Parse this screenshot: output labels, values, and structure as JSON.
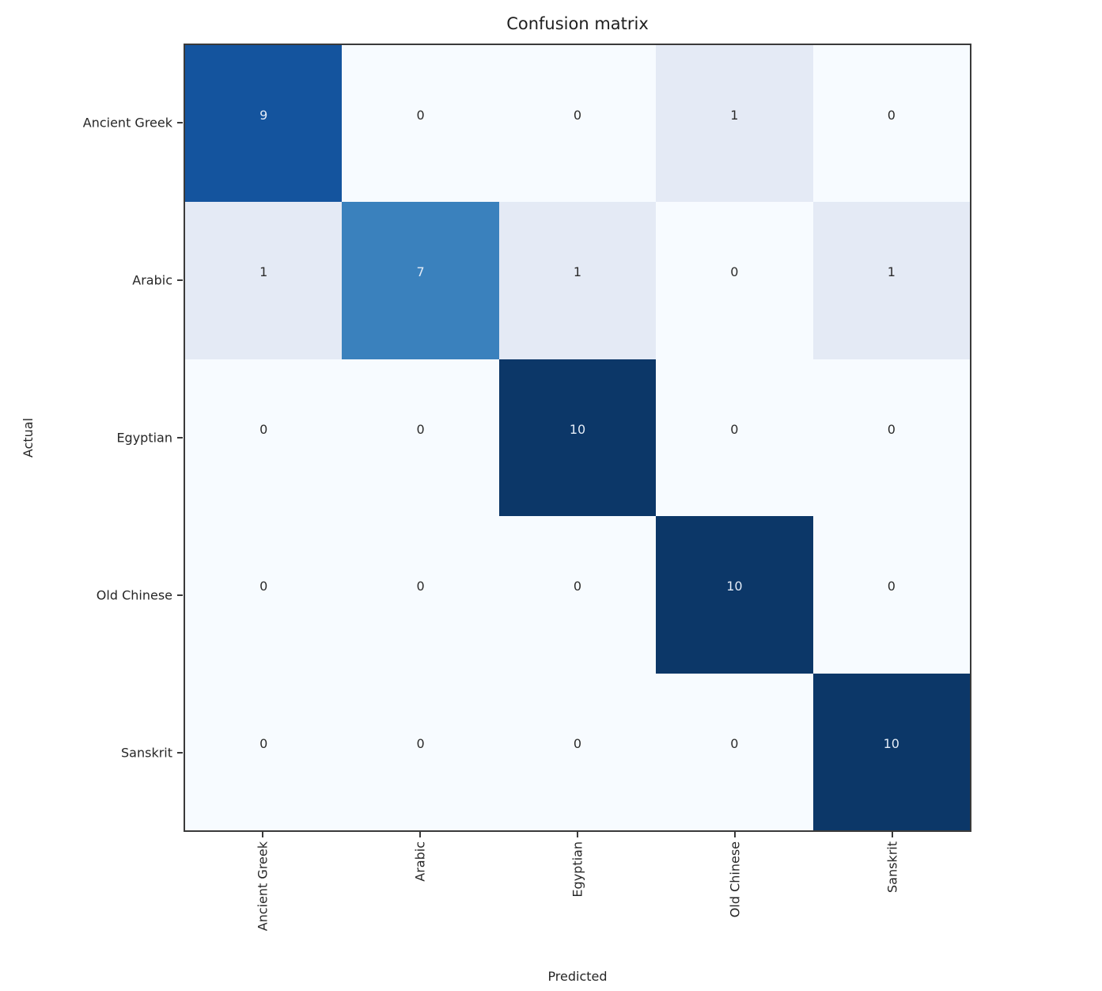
{
  "title": "Confusion matrix",
  "axes": {
    "xlabel": "Predicted",
    "ylabel": "Actual"
  },
  "chart_data": {
    "type": "heatmap",
    "title": "Confusion matrix",
    "xlabel": "Predicted",
    "ylabel": "Actual",
    "x_categories": [
      "Ancient Greek",
      "Arabic",
      "Egyptian",
      "Old Chinese",
      "Sanskrit"
    ],
    "y_categories": [
      "Ancient Greek",
      "Arabic",
      "Egyptian",
      "Old Chinese",
      "Sanskrit"
    ],
    "rows": [
      [
        9,
        0,
        0,
        1,
        0
      ],
      [
        1,
        7,
        1,
        0,
        1
      ],
      [
        0,
        0,
        10,
        0,
        0
      ],
      [
        0,
        0,
        0,
        10,
        0
      ],
      [
        0,
        0,
        0,
        0,
        10
      ]
    ],
    "colormap": "Blues",
    "vmin": 0,
    "vmax": 10,
    "legend": "none",
    "grid": false
  },
  "colors": {
    "value_colors": {
      "0": "#f7fbff",
      "1": "#e4eaf5",
      "7": "#3a81bd",
      "9": "#14549e",
      "10": "#0c3768"
    },
    "light_text": "#e4ecf7",
    "dark_text": "#2b2b2b",
    "text_threshold": 5,
    "spine": "#3a3a3a",
    "background": "#ffffff"
  }
}
